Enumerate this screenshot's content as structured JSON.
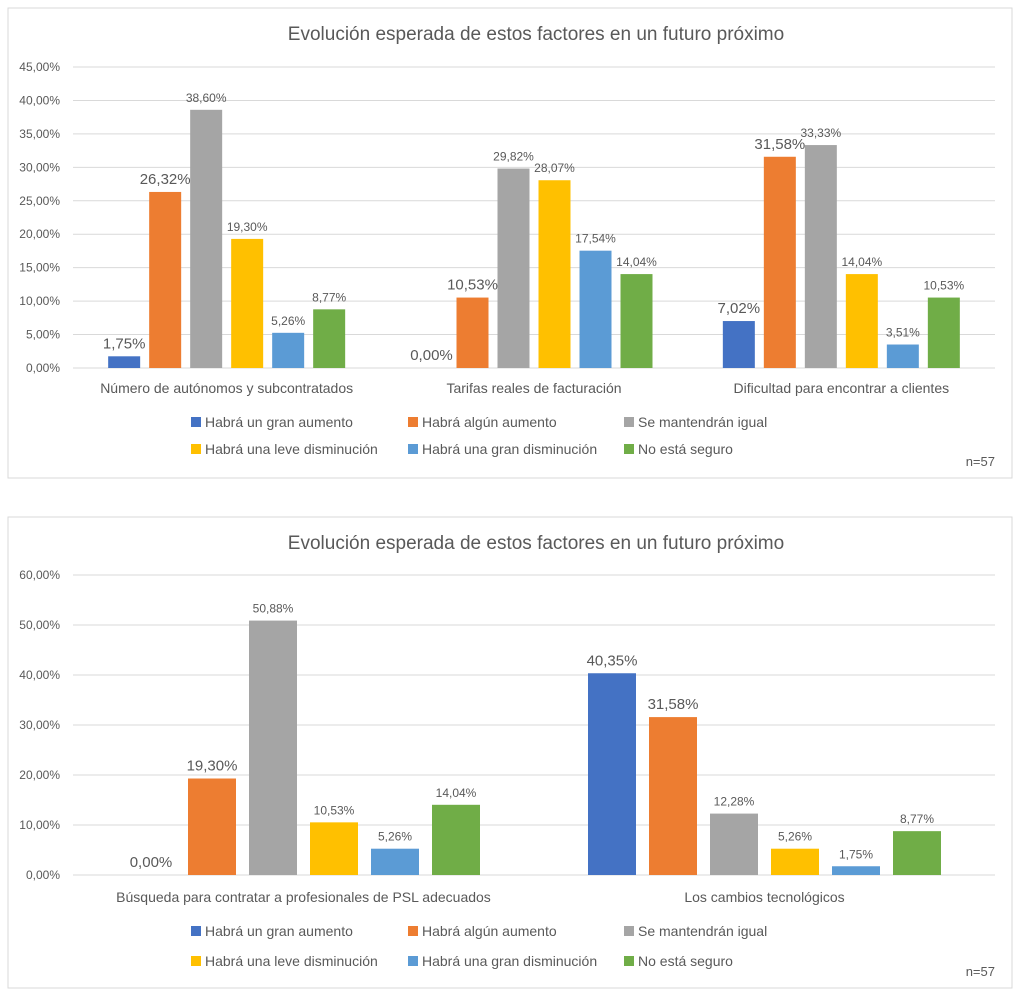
{
  "colors": {
    "series": [
      "#4472c4",
      "#ed7d31",
      "#a5a5a5",
      "#ffc000",
      "#5b9bd5",
      "#70ad47"
    ],
    "grid": "#d9d9d9",
    "text": "#595959",
    "frame": "#d9d9d9"
  },
  "chart_data": [
    {
      "type": "bar",
      "title": "Evolución esperada de estos factores en un futuro próximo",
      "categories": [
        "Número de autónomos y subcontratados",
        "Tarifas reales de facturación",
        "Dificultad para encontrar a clientes"
      ],
      "series": [
        {
          "name": "Habrá un gran aumento",
          "values": [
            1.75,
            0.0,
            7.02
          ],
          "labels": [
            "1,75%",
            "0,00%",
            "7,02%"
          ]
        },
        {
          "name": "Habrá algún aumento",
          "values": [
            26.32,
            10.53,
            31.58
          ],
          "labels": [
            "26,32%",
            "10,53%",
            "31,58%"
          ]
        },
        {
          "name": "Se mantendrán igual",
          "values": [
            38.6,
            29.82,
            33.33
          ],
          "labels": [
            "38,60%",
            "29,82%",
            "33,33%"
          ]
        },
        {
          "name": "Habrá una leve disminución",
          "values": [
            19.3,
            28.07,
            14.04
          ],
          "labels": [
            "19,30%",
            "28,07%",
            "14,04%"
          ]
        },
        {
          "name": "Habrá una gran disminución",
          "values": [
            5.26,
            17.54,
            3.51
          ],
          "labels": [
            "5,26%",
            "17,54%",
            "3,51%"
          ]
        },
        {
          "name": "No está seguro",
          "values": [
            8.77,
            14.04,
            10.53
          ],
          "labels": [
            "8,77%",
            "14,04%",
            "10,53%"
          ]
        }
      ],
      "yticks": [
        "0,00%",
        "5,00%",
        "10,00%",
        "15,00%",
        "20,00%",
        "25,00%",
        "30,00%",
        "35,00%",
        "40,00%",
        "45,00%"
      ],
      "ylim": [
        0,
        45
      ],
      "ystep": 5,
      "grid": true,
      "legend_position": "bottom",
      "note": "n=57"
    },
    {
      "type": "bar",
      "title": "Evolución esperada de estos factores en un futuro próximo",
      "categories": [
        "Búsqueda para contratar a profesionales de PSL adecuados",
        "Los cambios tecnológicos"
      ],
      "series": [
        {
          "name": "Habrá un gran aumento",
          "values": [
            0.0,
            40.35
          ],
          "labels": [
            "0,00%",
            "40,35%"
          ]
        },
        {
          "name": "Habrá algún aumento",
          "values": [
            19.3,
            31.58
          ],
          "labels": [
            "19,30%",
            "31,58%"
          ]
        },
        {
          "name": "Se mantendrán igual",
          "values": [
            50.88,
            12.28
          ],
          "labels": [
            "50,88%",
            "12,28%"
          ]
        },
        {
          "name": "Habrá una leve disminución",
          "values": [
            10.53,
            5.26
          ],
          "labels": [
            "10,53%",
            "5,26%"
          ]
        },
        {
          "name": "Habrá una gran disminución",
          "values": [
            5.26,
            1.75
          ],
          "labels": [
            "5,26%",
            "1,75%"
          ]
        },
        {
          "name": "No está seguro",
          "values": [
            14.04,
            8.77
          ],
          "labels": [
            "14,04%",
            "8,77%"
          ]
        }
      ],
      "yticks": [
        "0,00%",
        "10,00%",
        "20,00%",
        "30,00%",
        "40,00%",
        "50,00%",
        "60,00%"
      ],
      "ylim": [
        0,
        60
      ],
      "ystep": 10,
      "grid": true,
      "legend_position": "bottom",
      "note": "n=57"
    }
  ]
}
